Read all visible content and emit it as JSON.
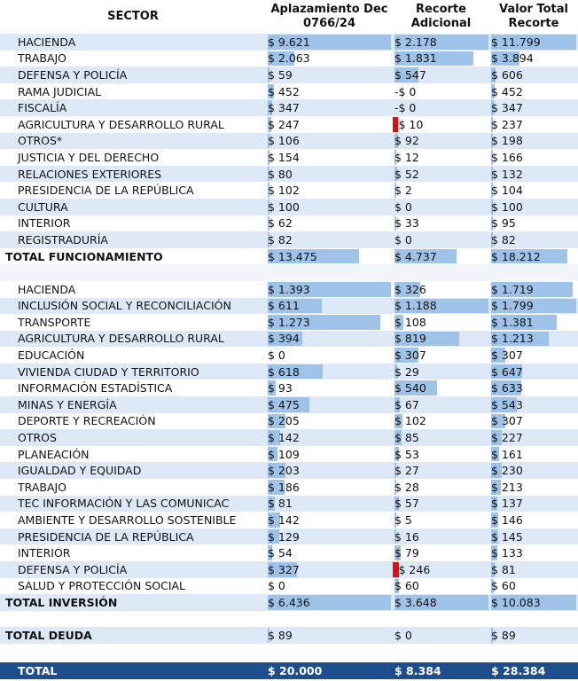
{
  "headers": {
    "sector": "SECTOR",
    "col1": "Aplazamiento Dec 0766/24",
    "col2": "Recorte Adicional",
    "col3": "Valor Total Recorte"
  },
  "colors": {
    "bar": "#9fc3e8",
    "negative_bar": "#e01010",
    "row_alt": "#dde9f7",
    "total_bg": "#1f4e8c"
  },
  "funcionamiento": {
    "rows": [
      [
        "HACIENDA",
        "$ 9.621",
        "$ 2.178",
        "$ 11.799"
      ],
      [
        "TRABAJO",
        "$ 2.063",
        "$ 1.831",
        "$ 3.894"
      ],
      [
        "DEFENSA Y POLICÍA",
        "$ 59",
        "$ 547",
        "$ 606"
      ],
      [
        "RAMA JUDICIAL",
        "$ 452",
        "-$ 0",
        "$ 452"
      ],
      [
        "FISCALÍA",
        "$ 347",
        "-$ 0",
        "$ 347"
      ],
      [
        "AGRICULTURA Y DESARROLLO RURAL",
        "$ 247",
        "-$ 10",
        "$ 237"
      ],
      [
        "OTROS*",
        "$ 106",
        "$ 92",
        "$ 198"
      ],
      [
        "JUSTICIA Y DEL DERECHO",
        "$ 154",
        "$ 12",
        "$ 166"
      ],
      [
        "RELACIONES EXTERIORES",
        "$ 80",
        "$ 52",
        "$ 132"
      ],
      [
        "PRESIDENCIA DE LA REPÚBLICA",
        "$ 102",
        "$ 2",
        "$ 104"
      ],
      [
        "CULTURA",
        "$ 100",
        "$ 0",
        "$ 100"
      ],
      [
        "INTERIOR",
        "$ 62",
        "$ 33",
        "$ 95"
      ],
      [
        "REGISTRADURÍA",
        "$ 82",
        "$ 0",
        "$ 82"
      ]
    ],
    "total": [
      "TOTAL FUNCIONAMIENTO",
      "$ 13.475",
      "$ 4.737",
      "$ 18.212"
    ],
    "total_bar_fill": [
      0.74,
      0.66,
      0.9
    ]
  },
  "inversion": {
    "rows": [
      [
        "HACIENDA",
        "$ 1.393",
        "$ 326",
        "$ 1.719"
      ],
      [
        "INCLUSIÓN SOCIAL Y RECONCILIACIÓN",
        "$ 611",
        "$ 1.188",
        "$ 1.799"
      ],
      [
        "TRANSPORTE",
        "$ 1.273",
        "$ 108",
        "$ 1.381"
      ],
      [
        "AGRICULTURA Y DESARROLLO RURAL",
        "$ 394",
        "$ 819",
        "$ 1.213"
      ],
      [
        "EDUCACIÓN",
        "$ 0",
        "$ 307",
        "$ 307"
      ],
      [
        "VIVIENDA CIUDAD Y TERRITORIO",
        "$ 618",
        "$ 29",
        "$ 647"
      ],
      [
        "INFORMACIÓN ESTADÍSTICA",
        "$ 93",
        "$ 540",
        "$ 633"
      ],
      [
        "MINAS Y ENERGÍA",
        "$ 475",
        "$ 67",
        "$ 543"
      ],
      [
        "DEPORTE Y RECREACIÓN",
        "$ 205",
        "$ 102",
        "$ 307"
      ],
      [
        "OTROS",
        "$ 142",
        "$ 85",
        "$ 227"
      ],
      [
        "PLANEACIÓN",
        "$ 109",
        "$ 53",
        "$ 161"
      ],
      [
        "IGUALDAD Y EQUIDAD",
        "$ 203",
        "$ 27",
        "$ 230"
      ],
      [
        "TRABAJO",
        "$ 186",
        "$ 28",
        "$ 213"
      ],
      [
        "TEC  INFORMACIÓN Y LAS COMUNICAC",
        "$ 81",
        "$ 57",
        "$ 137"
      ],
      [
        "AMBIENTE Y DESARROLLO SOSTENIBLE",
        "$ 142",
        "$ 5",
        "$ 146"
      ],
      [
        "PRESIDENCIA DE LA REPÚBLICA",
        "$ 129",
        "$ 16",
        "$ 145"
      ],
      [
        "INTERIOR",
        "$ 54",
        "$ 79",
        "$ 133"
      ],
      [
        "DEFENSA Y POLICÍA",
        "$ 327",
        "-$ 246",
        "$ 81"
      ],
      [
        "SALUD Y PROTECCIÓN SOCIAL",
        "$ 0",
        "$ 60",
        "$ 60"
      ]
    ],
    "total": [
      "TOTAL INVERSIÓN",
      "$ 6.436",
      "$ 3.648",
      "$ 10.083"
    ],
    "total_bar_fill": [
      1,
      1,
      1
    ]
  },
  "deuda": {
    "total": [
      "TOTAL DEUDA",
      "$ 89",
      "$ 0",
      "$ 89"
    ],
    "total_bar_fill": [
      0.01,
      0,
      0.01
    ]
  },
  "grand_total": [
    "TOTAL",
    "$ 20.000",
    "$ 8.384",
    "$ 28.384"
  ]
}
